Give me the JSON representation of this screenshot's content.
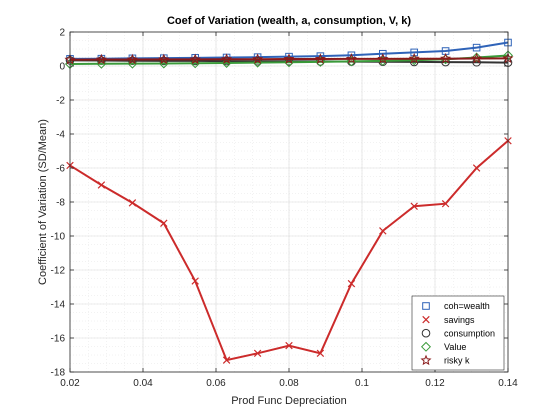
{
  "chart_data": {
    "type": "line",
    "title": "Coef of Variation (wealth, a, consumption, V, k)",
    "xlabel": "Prod Func Depreciation",
    "ylabel": "Coefficient of Variation (SD/Mean)",
    "xlim": [
      0.02,
      0.14
    ],
    "ylim": [
      -18,
      2
    ],
    "xticks": [
      0.02,
      0.04,
      0.06,
      0.08,
      0.1,
      0.12,
      0.14
    ],
    "xtick_labels": [
      "0.02",
      "0.04",
      "0.06",
      "0.08",
      "0.1",
      "0.12",
      "0.14"
    ],
    "yticks": [
      2,
      0,
      -2,
      -4,
      -6,
      -8,
      -10,
      -12,
      -14,
      -16,
      -18
    ],
    "ytick_labels": [
      "2",
      "0",
      "-2",
      "-4",
      "-6",
      "-8",
      "-10",
      "-12",
      "-14",
      "-16",
      "-18"
    ],
    "grid": true,
    "legend_position": "bottom-right",
    "x": [
      0.02,
      0.0286,
      0.0371,
      0.0457,
      0.0543,
      0.0629,
      0.0714,
      0.08,
      0.0886,
      0.0971,
      0.1057,
      0.1143,
      0.1229,
      0.1314,
      0.14
    ],
    "series": [
      {
        "name": "coh=wealth",
        "color": "#2f63b8",
        "marker": "square",
        "values": [
          0.42,
          0.43,
          0.45,
          0.46,
          0.48,
          0.5,
          0.52,
          0.55,
          0.58,
          0.63,
          0.72,
          0.8,
          0.88,
          1.08,
          1.38
        ]
      },
      {
        "name": "savings",
        "color": "#cc2b2b",
        "marker": "x",
        "values": [
          -5.85,
          -7.0,
          -8.05,
          -9.25,
          -12.65,
          -17.3,
          -16.9,
          -16.45,
          -16.9,
          -12.8,
          -9.7,
          -8.25,
          -8.1,
          -6.0,
          -4.4
        ]
      },
      {
        "name": "consumption",
        "color": "#333333",
        "marker": "circle",
        "values": [
          0.33,
          0.32,
          0.31,
          0.3,
          0.3,
          0.29,
          0.28,
          0.28,
          0.27,
          0.26,
          0.25,
          0.24,
          0.23,
          0.22,
          0.2
        ]
      },
      {
        "name": "Value",
        "color": "#3a9a3a",
        "marker": "diamond",
        "values": [
          0.12,
          0.13,
          0.14,
          0.15,
          0.16,
          0.18,
          0.2,
          0.22,
          0.24,
          0.27,
          0.3,
          0.34,
          0.4,
          0.5,
          0.62
        ]
      },
      {
        "name": "risky k",
        "color": "#8b1a1a",
        "marker": "star",
        "values": [
          0.37,
          0.38,
          0.38,
          0.39,
          0.39,
          0.4,
          0.4,
          0.41,
          0.41,
          0.42,
          0.42,
          0.43,
          0.43,
          0.44,
          0.45
        ]
      }
    ]
  }
}
